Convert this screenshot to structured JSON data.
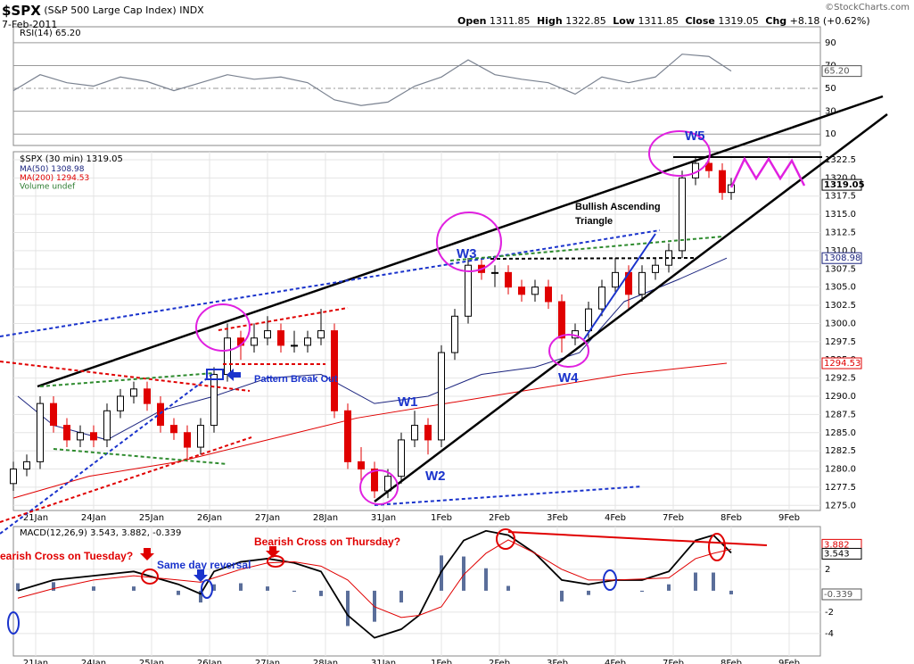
{
  "header": {
    "symbol": "$SPX",
    "name": "(S&P 500 Large Cap Index)",
    "exchange": "INDX",
    "date": "7-Feb-2011",
    "quote": [
      {
        "label": "Open",
        "value": 1311.85
      },
      {
        "label": "High",
        "value": 1322.85
      },
      {
        "label": "Low",
        "value": 1311.85
      },
      {
        "label": "Close",
        "value": 1319.05
      },
      {
        "label": "Chg",
        "value": "+8.18 (+0.62%)"
      }
    ],
    "source": "©StockCharts.com"
  },
  "chart_data": [
    {
      "type": "line",
      "title": "RSI(14)",
      "xlim": [
        0,
        181
      ],
      "ylim": [
        0,
        104
      ],
      "yticks": [
        10,
        30,
        50,
        70,
        90
      ],
      "x": [
        0,
        6,
        12,
        18,
        24,
        30,
        36,
        42,
        48,
        54,
        60,
        66,
        72,
        78,
        84,
        90,
        96,
        102,
        108,
        114,
        120,
        126,
        132,
        138,
        144,
        150,
        156,
        161
      ],
      "values": [
        48,
        62,
        55,
        52,
        60,
        56,
        48,
        55,
        62,
        58,
        60,
        55,
        40,
        35,
        38,
        52,
        60,
        75,
        62,
        58,
        55,
        45,
        60,
        55,
        60,
        80,
        78,
        65.2
      ],
      "color": "#7a8290",
      "last": {
        "value": 65.2,
        "label": "65.20"
      }
    },
    {
      "type": "candlestick",
      "title": "$SPX (30 min)",
      "last": 1319.05,
      "xlim": [
        0,
        181
      ],
      "ylim": [
        1274.3,
        1323.6
      ],
      "yticks": [
        {
          "value": 1275,
          "label": "1275.0"
        },
        {
          "value": 1277.5,
          "label": "1277.5"
        },
        {
          "value": 1280,
          "label": "1280.0"
        },
        {
          "value": 1282.5,
          "label": "1282.5"
        },
        {
          "value": 1285,
          "label": "1285.0"
        },
        {
          "value": 1287.5,
          "label": "1287.5"
        },
        {
          "value": 1290,
          "label": "1290.0"
        },
        {
          "value": 1292.5,
          "label": "1292.5"
        },
        {
          "value": 1295,
          "label": "1295.0"
        },
        {
          "value": 1297.5,
          "label": "1297.5"
        },
        {
          "value": 1300,
          "label": "1300.0"
        },
        {
          "value": 1302.5,
          "label": "1302.5"
        },
        {
          "value": 1305,
          "label": "1305.0"
        },
        {
          "value": 1307.5,
          "label": "1307.5"
        },
        {
          "value": 1310,
          "label": "1310.0"
        },
        {
          "value": 1312.5,
          "label": "1312.5"
        },
        {
          "value": 1315,
          "label": "1315.0"
        },
        {
          "value": 1317.5,
          "label": "1317.5"
        },
        {
          "value": 1320,
          "label": "1320.0"
        },
        {
          "value": 1322.5,
          "label": "1322.5"
        }
      ],
      "xticks": [
        {
          "value": 5,
          "label": "21Jan"
        },
        {
          "value": 18,
          "label": "24Jan"
        },
        {
          "value": 31,
          "label": "25Jan"
        },
        {
          "value": 44,
          "label": "26Jan"
        },
        {
          "value": 57,
          "label": "27Jan"
        },
        {
          "value": 70,
          "label": "28Jan"
        },
        {
          "value": 83,
          "label": "31Jan"
        },
        {
          "value": 96,
          "label": "1Feb"
        },
        {
          "value": 109,
          "label": "2Feb"
        },
        {
          "value": 122,
          "label": "3Feb"
        },
        {
          "value": 135,
          "label": "4Feb"
        },
        {
          "value": 148,
          "label": "7Feb"
        },
        {
          "value": 161,
          "label": "8Feb"
        },
        {
          "value": 174,
          "label": "9Feb"
        }
      ],
      "x": [
        0,
        3,
        6,
        9,
        12,
        15,
        18,
        21,
        24,
        27,
        30,
        33,
        36,
        39,
        42,
        45,
        48,
        51,
        54,
        57,
        60,
        63,
        66,
        69,
        72,
        75,
        78,
        81,
        84,
        87,
        90,
        93,
        96,
        99,
        102,
        105,
        108,
        111,
        114,
        117,
        120,
        123,
        126,
        129,
        132,
        135,
        138,
        141,
        144,
        147,
        150,
        153,
        156,
        159,
        161
      ],
      "open": [
        1278,
        1280,
        1281,
        1289,
        1286,
        1284,
        1285,
        1284,
        1288,
        1290,
        1291,
        1289,
        1286,
        1285,
        1283,
        1286,
        1293,
        1298,
        1297,
        1298,
        1299,
        1297,
        1297,
        1298,
        1299,
        1288,
        1281,
        1280,
        1277,
        1279,
        1284,
        1286,
        1284,
        1296,
        1301,
        1308,
        1307,
        1307,
        1305,
        1304,
        1305,
        1303,
        1298,
        1299,
        1302,
        1305,
        1307,
        1304,
        1307,
        1308,
        1310,
        1320,
        1322,
        1321,
        1318
      ],
      "high": [
        1281,
        1282,
        1290,
        1290,
        1287,
        1286,
        1286,
        1289,
        1291,
        1292,
        1292,
        1290,
        1287,
        1286,
        1287,
        1294,
        1300,
        1299,
        1300,
        1301,
        1300,
        1299,
        1299,
        1302,
        1300,
        1289,
        1283,
        1281,
        1280,
        1285,
        1288,
        1287,
        1297,
        1302,
        1309,
        1309,
        1308,
        1308,
        1306,
        1306,
        1306,
        1304,
        1300,
        1303,
        1306,
        1309,
        1308,
        1308,
        1309,
        1311,
        1321,
        1323,
        1323,
        1322,
        1320
      ],
      "low": [
        1277,
        1279,
        1280,
        1285,
        1283,
        1283,
        1283,
        1283,
        1287,
        1289,
        1288,
        1285,
        1284,
        1281,
        1282,
        1285,
        1292,
        1295,
        1296,
        1297,
        1296,
        1296,
        1296,
        1297,
        1287,
        1280,
        1278,
        1276,
        1276,
        1278,
        1283,
        1282,
        1283,
        1295,
        1300,
        1306,
        1305,
        1304,
        1303,
        1303,
        1302,
        1296,
        1297,
        1298,
        1301,
        1304,
        1302,
        1303,
        1306,
        1307,
        1309,
        1319,
        1320,
        1317,
        1317
      ],
      "close": [
        1280,
        1281,
        1289,
        1286,
        1284,
        1285,
        1284,
        1288,
        1290,
        1291,
        1289,
        1286,
        1285,
        1283,
        1286,
        1293,
        1298,
        1297,
        1298,
        1299,
        1297,
        1297,
        1298,
        1299,
        1288,
        1281,
        1280,
        1277,
        1279,
        1284,
        1286,
        1284,
        1296,
        1301,
        1308,
        1307,
        1307,
        1305,
        1304,
        1305,
        1303,
        1298,
        1299,
        1302,
        1305,
        1307,
        1304,
        1307,
        1308,
        1310,
        1320,
        1322,
        1321,
        1318,
        1319.05
      ],
      "up_color": "#000000",
      "down_color": "#e00000",
      "series": [
        {
          "name": "MA(50)",
          "color": "#1a237e",
          "last": 1308.98,
          "x": [
            1,
            9,
            21,
            33,
            45,
            57,
            69,
            81,
            93,
            97,
            105,
            117,
            127,
            137,
            149,
            160
          ],
          "values": [
            1290,
            1286,
            1284,
            1288,
            1290,
            1292.5,
            1293,
            1289,
            1290,
            1291,
            1293,
            1294,
            1296,
            1303,
            1306,
            1308.98
          ]
        },
        {
          "name": "MA(200)",
          "color": "#e00000",
          "last": 1294.53,
          "x": [
            0,
            17,
            37,
            57,
            77,
            97,
            117,
            137,
            160
          ],
          "values": [
            1276,
            1279,
            1281,
            1284,
            1287,
            1289,
            1291,
            1293,
            1294.53
          ]
        }
      ],
      "volume_label": "Volume undef",
      "annotations": [
        "W5",
        "W3",
        "W4",
        "W1",
        "W2",
        "Bullish Ascending",
        "Triangle",
        "Pattern Break Out"
      ]
    },
    {
      "type": "macd",
      "title": "MACD(12,26,9)",
      "xlim": [
        0,
        181
      ],
      "ylim": [
        -6.1,
        6
      ],
      "yticks": [
        -4,
        -2,
        2
      ],
      "xticks": [
        {
          "value": 5,
          "label": "21Jan"
        },
        {
          "value": 18,
          "label": "24Jan"
        },
        {
          "value": 31,
          "label": "25Jan"
        },
        {
          "value": 44,
          "label": "26Jan"
        },
        {
          "value": 57,
          "label": "27Jan"
        },
        {
          "value": 70,
          "label": "28Jan"
        },
        {
          "value": 83,
          "label": "31Jan"
        },
        {
          "value": 96,
          "label": "1Feb"
        },
        {
          "value": 109,
          "label": "2Feb"
        },
        {
          "value": 122,
          "label": "3Feb"
        },
        {
          "value": 135,
          "label": "4Feb"
        },
        {
          "value": 148,
          "label": "7Feb"
        },
        {
          "value": 161,
          "label": "8Feb"
        },
        {
          "value": 174,
          "label": "9Feb"
        }
      ],
      "x": [
        1,
        9,
        18,
        27,
        37,
        42,
        45,
        51,
        57,
        63,
        69,
        75,
        81,
        87,
        91,
        96,
        101,
        106,
        111,
        117,
        123,
        129,
        135,
        141,
        147,
        153,
        157,
        161
      ],
      "series": [
        {
          "type": "line",
          "color": "#000000",
          "last": 3.543,
          "values": [
            0,
            1,
            1.4,
            1.8,
            0.6,
            -0.3,
            1.8,
            2.7,
            3,
            2.6,
            1.8,
            -2.3,
            -4.4,
            -3.6,
            -2.3,
            1.8,
            4.7,
            5.6,
            5.2,
            3.5,
            1,
            0.6,
            1,
            1,
            1.8,
            4.7,
            5.2,
            3.543
          ]
        },
        {
          "type": "line",
          "color": "#e00000",
          "last": 3.882,
          "values": [
            -0.7,
            0.2,
            1,
            1.4,
            1,
            0.8,
            1.2,
            2,
            2.6,
            2.7,
            2.3,
            1,
            -1.5,
            -2.5,
            -2.3,
            -1.5,
            1.5,
            3.5,
            4.75,
            3.5,
            2,
            1,
            1,
            1.1,
            1.2,
            3,
            3.5,
            3.882
          ]
        },
        {
          "type": "bar",
          "color": "#5a6e9a",
          "last": -0.339,
          "values": [
            0.7,
            0.8,
            0.4,
            0.4,
            -0.4,
            -1.1,
            0.6,
            0.7,
            0.4,
            -0.1,
            -0.5,
            -3.3,
            -2.9,
            -1.1,
            0,
            3.3,
            3.2,
            2.1,
            0.45,
            0,
            -1,
            -0.4,
            0,
            -0.1,
            0.6,
            1.7,
            1.7,
            -0.339
          ]
        }
      ],
      "annotations": [
        "earish Cross on Tuesday?",
        "Same day reversal",
        "Bearish Cross on Thursday?"
      ]
    }
  ]
}
